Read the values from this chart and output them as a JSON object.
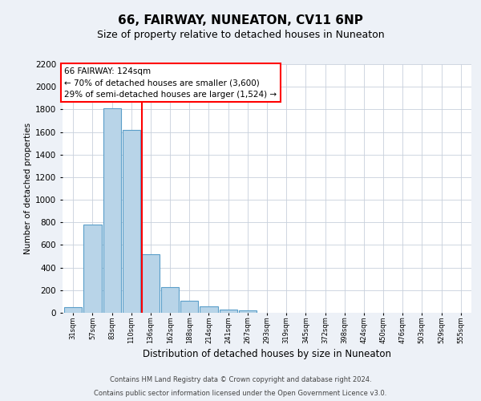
{
  "title": "66, FAIRWAY, NUNEATON, CV11 6NP",
  "subtitle": "Size of property relative to detached houses in Nuneaton",
  "xlabel": "Distribution of detached houses by size in Nuneaton",
  "ylabel": "Number of detached properties",
  "bin_labels": [
    "31sqm",
    "57sqm",
    "83sqm",
    "110sqm",
    "136sqm",
    "162sqm",
    "188sqm",
    "214sqm",
    "241sqm",
    "267sqm",
    "293sqm",
    "319sqm",
    "345sqm",
    "372sqm",
    "398sqm",
    "424sqm",
    "450sqm",
    "476sqm",
    "503sqm",
    "529sqm",
    "555sqm"
  ],
  "bar_heights": [
    50,
    780,
    1810,
    1620,
    520,
    230,
    110,
    60,
    30,
    20,
    0,
    0,
    0,
    0,
    0,
    0,
    0,
    0,
    0,
    0,
    0
  ],
  "bar_color": "#b8d4e8",
  "bar_edge_color": "#5a9ec9",
  "annotation_title": "66 FAIRWAY: 124sqm",
  "annotation_line1": "← 70% of detached houses are smaller (3,600)",
  "annotation_line2": "29% of semi-detached houses are larger (1,524) →",
  "ylim": [
    0,
    2200
  ],
  "yticks": [
    0,
    200,
    400,
    600,
    800,
    1000,
    1200,
    1400,
    1600,
    1800,
    2000,
    2200
  ],
  "footer1": "Contains HM Land Registry data © Crown copyright and database right 2024.",
  "footer2": "Contains public sector information licensed under the Open Government Licence v3.0.",
  "bg_color": "#edf1f7",
  "plot_bg_color": "#ffffff",
  "grid_color": "#c8d0dc",
  "title_fontsize": 11,
  "subtitle_fontsize": 9
}
